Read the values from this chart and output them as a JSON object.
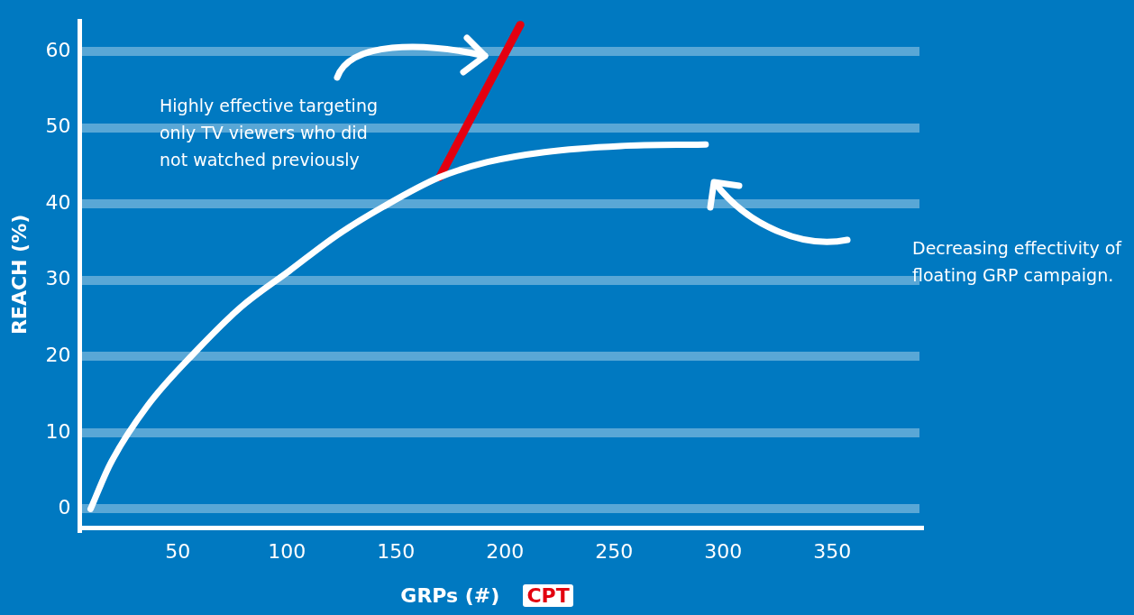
{
  "chart_data": {
    "type": "line",
    "xlabel": "GRPs (#)",
    "ylabel": "REACH (%)",
    "xlim": [
      5,
      390
    ],
    "xticks": [
      50,
      100,
      150,
      200,
      250,
      300,
      350
    ],
    "ylim": [
      -2.5,
      64
    ],
    "yticks": [
      0,
      10,
      20,
      30,
      40,
      50,
      60
    ],
    "grid": "y",
    "legend": "bottom",
    "marker": "none",
    "line_style": "solid",
    "series": [
      {
        "color": "#ffffff",
        "x": [
          10,
          19,
          36,
          58,
          79,
          101,
          123,
          144,
          170,
          192,
          218,
          253,
          292
        ],
        "values": [
          0,
          5.9,
          13.5,
          20.6,
          26.5,
          31.2,
          35.9,
          39.6,
          43.5,
          45.5,
          46.8,
          47.6,
          47.8
        ]
      },
      {
        "name": "CPT",
        "color": "#e3000f",
        "x": [
          170,
          207
        ],
        "values": [
          43.5,
          63.5
        ]
      }
    ],
    "annotations": [
      "Highly effective targeting only TV viewers who did not watched previously",
      "Decreasing effectivity of floating GRP campaign."
    ]
  }
}
